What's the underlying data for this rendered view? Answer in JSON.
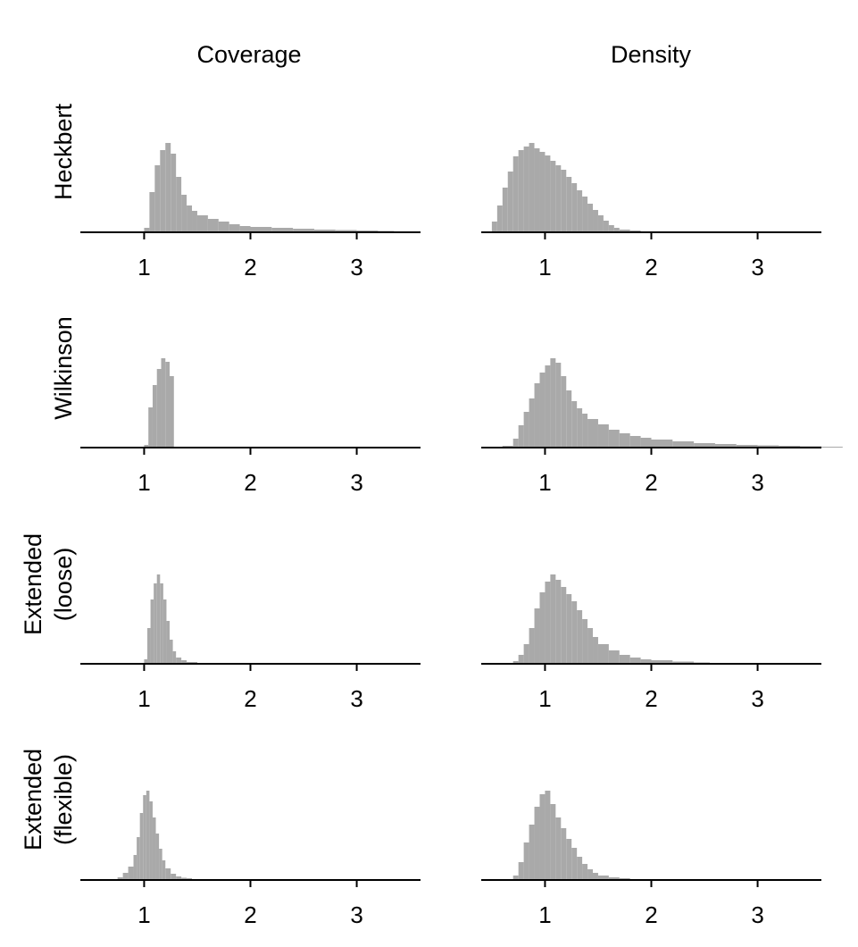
{
  "column_titles": [
    "Coverage",
    "Density"
  ],
  "row_titles": [
    [
      "Heckbert"
    ],
    [
      "Wilkinson"
    ],
    [
      "Extended",
      "(loose)"
    ],
    [
      "Extended",
      "(flexible)"
    ]
  ],
  "colors": {
    "bar": "#a9a9a9",
    "axis": "#000000"
  },
  "chart_data": [
    {
      "type": "bar",
      "title": "",
      "row": "Heckbert",
      "column": "Coverage",
      "xlabel": "",
      "ylabel": "",
      "xlim": [
        0.4,
        3.6
      ],
      "xticks": [
        1,
        2,
        3
      ],
      "x": [
        1.0,
        1.05,
        1.1,
        1.15,
        1.2,
        1.25,
        1.3,
        1.35,
        1.4,
        1.45,
        1.5,
        1.6,
        1.7,
        1.8,
        1.9,
        2.0,
        2.2,
        2.4,
        2.6,
        2.8,
        3.0,
        3.2,
        3.35
      ],
      "values": [
        0.05,
        0.45,
        0.75,
        0.92,
        1.0,
        0.88,
        0.62,
        0.42,
        0.3,
        0.24,
        0.19,
        0.15,
        0.12,
        0.09,
        0.07,
        0.06,
        0.05,
        0.04,
        0.03,
        0.025,
        0.02,
        0.015,
        0.01
      ]
    },
    {
      "type": "bar",
      "title": "",
      "row": "Heckbert",
      "column": "Density",
      "xlabel": "",
      "ylabel": "",
      "xlim": [
        0.4,
        3.6
      ],
      "xticks": [
        1,
        2,
        3
      ],
      "x": [
        0.5,
        0.55,
        0.6,
        0.65,
        0.7,
        0.75,
        0.8,
        0.85,
        0.9,
        0.95,
        1.0,
        1.05,
        1.1,
        1.15,
        1.2,
        1.25,
        1.3,
        1.35,
        1.4,
        1.45,
        1.5,
        1.55,
        1.6,
        1.65,
        1.7,
        1.8,
        1.9,
        2.0
      ],
      "values": [
        0.12,
        0.3,
        0.5,
        0.68,
        0.85,
        0.92,
        0.96,
        1.0,
        0.94,
        0.9,
        0.86,
        0.8,
        0.75,
        0.7,
        0.62,
        0.55,
        0.47,
        0.4,
        0.32,
        0.25,
        0.19,
        0.13,
        0.08,
        0.05,
        0.03,
        0.02,
        0.01,
        0.005
      ]
    },
    {
      "type": "bar",
      "title": "",
      "row": "Wilkinson",
      "column": "Coverage",
      "xlabel": "",
      "ylabel": "",
      "xlim": [
        0.4,
        3.6
      ],
      "xticks": [
        1,
        2,
        3
      ],
      "x": [
        1.0,
        1.04,
        1.08,
        1.12,
        1.16,
        1.2,
        1.24
      ],
      "values": [
        0.03,
        0.45,
        0.7,
        0.88,
        1.0,
        0.96,
        0.8
      ]
    },
    {
      "type": "bar",
      "title": "",
      "row": "Wilkinson",
      "column": "Density",
      "xlabel": "",
      "ylabel": "",
      "xlim": [
        0.4,
        3.6
      ],
      "xticks": [
        1,
        2,
        3
      ],
      "x": [
        0.5,
        0.6,
        0.7,
        0.75,
        0.8,
        0.85,
        0.9,
        0.95,
        1.0,
        1.05,
        1.1,
        1.15,
        1.2,
        1.25,
        1.3,
        1.35,
        1.4,
        1.5,
        1.6,
        1.7,
        1.8,
        1.9,
        2.0,
        2.2,
        2.4,
        2.6,
        2.8,
        3.0,
        3.2,
        3.4,
        3.6
      ],
      "values": [
        0.01,
        0.02,
        0.1,
        0.25,
        0.4,
        0.55,
        0.72,
        0.84,
        0.92,
        1.0,
        0.95,
        0.8,
        0.64,
        0.52,
        0.44,
        0.38,
        0.32,
        0.26,
        0.2,
        0.16,
        0.13,
        0.11,
        0.09,
        0.07,
        0.05,
        0.04,
        0.03,
        0.025,
        0.02,
        0.015,
        0.01
      ]
    },
    {
      "type": "bar",
      "title": "",
      "row": "Extended (loose)",
      "column": "Coverage",
      "xlabel": "",
      "ylabel": "",
      "xlim": [
        0.4,
        3.6
      ],
      "xticks": [
        1,
        2,
        3
      ],
      "x": [
        1.0,
        1.03,
        1.06,
        1.09,
        1.12,
        1.15,
        1.18,
        1.21,
        1.24,
        1.27,
        1.3,
        1.35,
        1.4,
        1.5
      ],
      "values": [
        0.05,
        0.4,
        0.72,
        0.9,
        1.0,
        0.9,
        0.72,
        0.48,
        0.27,
        0.14,
        0.07,
        0.04,
        0.02,
        0.01
      ]
    },
    {
      "type": "bar",
      "title": "",
      "row": "Extended (loose)",
      "column": "Density",
      "xlabel": "",
      "ylabel": "",
      "xlim": [
        0.4,
        3.6
      ],
      "xticks": [
        1,
        2,
        3
      ],
      "x": [
        0.7,
        0.75,
        0.8,
        0.85,
        0.9,
        0.95,
        1.0,
        1.05,
        1.1,
        1.15,
        1.2,
        1.25,
        1.3,
        1.35,
        1.4,
        1.45,
        1.5,
        1.6,
        1.7,
        1.8,
        1.9,
        2.0,
        2.2,
        2.4,
        2.55
      ],
      "values": [
        0.03,
        0.1,
        0.22,
        0.4,
        0.62,
        0.8,
        0.92,
        1.0,
        0.94,
        0.86,
        0.78,
        0.7,
        0.6,
        0.5,
        0.4,
        0.3,
        0.22,
        0.15,
        0.1,
        0.07,
        0.05,
        0.04,
        0.025,
        0.015,
        0.01
      ]
    },
    {
      "type": "bar",
      "title": "",
      "row": "Extended (flexible)",
      "column": "Coverage",
      "xlabel": "",
      "ylabel": "",
      "xlim": [
        0.4,
        3.6
      ],
      "xticks": [
        1,
        2,
        3
      ],
      "x": [
        0.7,
        0.75,
        0.8,
        0.85,
        0.9,
        0.93,
        0.96,
        0.99,
        1.02,
        1.05,
        1.08,
        1.11,
        1.14,
        1.17,
        1.2,
        1.25,
        1.3,
        1.35,
        1.4,
        1.45
      ],
      "values": [
        0.01,
        0.03,
        0.08,
        0.15,
        0.28,
        0.48,
        0.75,
        0.95,
        1.0,
        0.88,
        0.7,
        0.52,
        0.35,
        0.22,
        0.13,
        0.07,
        0.04,
        0.025,
        0.02,
        0.01
      ]
    },
    {
      "type": "bar",
      "title": "",
      "row": "Extended (flexible)",
      "column": "Density",
      "xlabel": "",
      "ylabel": "",
      "xlim": [
        0.4,
        3.6
      ],
      "xticks": [
        1,
        2,
        3
      ],
      "x": [
        0.7,
        0.75,
        0.8,
        0.85,
        0.9,
        0.95,
        1.0,
        1.05,
        1.1,
        1.15,
        1.2,
        1.25,
        1.3,
        1.35,
        1.4,
        1.45,
        1.5,
        1.6,
        1.7,
        1.8
      ],
      "values": [
        0.05,
        0.2,
        0.42,
        0.62,
        0.82,
        0.96,
        1.0,
        0.85,
        0.7,
        0.58,
        0.46,
        0.36,
        0.26,
        0.18,
        0.12,
        0.08,
        0.05,
        0.03,
        0.02,
        0.01
      ]
    }
  ]
}
